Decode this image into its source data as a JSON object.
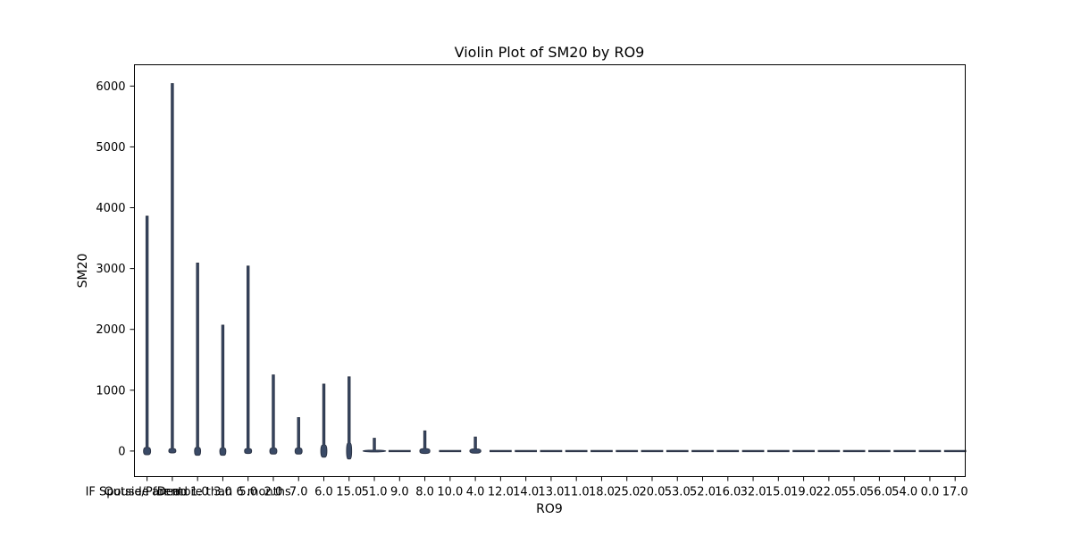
{
  "chart_data": {
    "type": "violin",
    "title": "Violin Plot of SM20 by RO9",
    "xlabel": "RO9",
    "ylabel": "SM20",
    "ylim": [
      -420,
      6350
    ],
    "yticks": [
      0,
      1000,
      2000,
      3000,
      4000,
      5000,
      6000
    ],
    "grid": false,
    "categories": [
      "IF Spouse/Parent: 1.0",
      "Dead",
      "Outside for more than 6 months",
      "3.0",
      "5.0",
      "2.0",
      "7.0",
      "6.0",
      "15.0",
      "51.0",
      "9.0",
      "8.0",
      "10.0",
      "4.0",
      "12.0",
      "14.0",
      "13.0",
      "11.0",
      "18.0",
      "25.0",
      "20.0",
      "53.0",
      "52.0",
      "16.0",
      "32.0",
      "15.0",
      "19.0",
      "22.0",
      "55.0",
      "56.0",
      "54.0",
      "0.0",
      "17.0"
    ],
    "violins": [
      {
        "min": -60,
        "max": 3860,
        "body_low": -60,
        "body_high": 60,
        "half_width": 0.14
      },
      {
        "min": -30,
        "max": 6040,
        "body_low": -30,
        "body_high": 40,
        "half_width": 0.14
      },
      {
        "min": -70,
        "max": 3090,
        "body_low": -70,
        "body_high": 60,
        "half_width": 0.12
      },
      {
        "min": -70,
        "max": 2070,
        "body_low": -70,
        "body_high": 50,
        "half_width": 0.12
      },
      {
        "min": -40,
        "max": 3040,
        "body_low": -40,
        "body_high": 40,
        "half_width": 0.14
      },
      {
        "min": -50,
        "max": 1250,
        "body_low": -50,
        "body_high": 50,
        "half_width": 0.14
      },
      {
        "min": -50,
        "max": 550,
        "body_low": -50,
        "body_high": 50,
        "half_width": 0.14
      },
      {
        "min": -100,
        "max": 1100,
        "body_low": -100,
        "body_high": 100,
        "half_width": 0.12
      },
      {
        "min": -130,
        "max": 1220,
        "body_low": -130,
        "body_high": 130,
        "half_width": 0.1
      },
      {
        "min": -15,
        "max": 210,
        "body_low": -15,
        "body_high": 15,
        "half_width": 0.45
      },
      {
        "min": 0,
        "max": 0,
        "body_low": 0,
        "body_high": 0,
        "half_width": 0.42
      },
      {
        "min": -40,
        "max": 330,
        "body_low": -40,
        "body_high": 40,
        "half_width": 0.2
      },
      {
        "min": 0,
        "max": 0,
        "body_low": 0,
        "body_high": 0,
        "half_width": 0.42
      },
      {
        "min": -35,
        "max": 230,
        "body_low": -35,
        "body_high": 35,
        "half_width": 0.22
      },
      {
        "min": 0,
        "max": 0,
        "body_low": 0,
        "body_high": 0,
        "half_width": 0.42
      },
      {
        "min": 0,
        "max": 0,
        "body_low": 0,
        "body_high": 0,
        "half_width": 0.42
      },
      {
        "min": 0,
        "max": 0,
        "body_low": 0,
        "body_high": 0,
        "half_width": 0.42
      },
      {
        "min": 0,
        "max": 0,
        "body_low": 0,
        "body_high": 0,
        "half_width": 0.42
      },
      {
        "min": 0,
        "max": 0,
        "body_low": 0,
        "body_high": 0,
        "half_width": 0.42
      },
      {
        "min": 0,
        "max": 0,
        "body_low": 0,
        "body_high": 0,
        "half_width": 0.42
      },
      {
        "min": 0,
        "max": 0,
        "body_low": 0,
        "body_high": 0,
        "half_width": 0.42
      },
      {
        "min": 0,
        "max": 0,
        "body_low": 0,
        "body_high": 0,
        "half_width": 0.42
      },
      {
        "min": 0,
        "max": 0,
        "body_low": 0,
        "body_high": 0,
        "half_width": 0.42
      },
      {
        "min": 0,
        "max": 0,
        "body_low": 0,
        "body_high": 0,
        "half_width": 0.42
      },
      {
        "min": 0,
        "max": 0,
        "body_low": 0,
        "body_high": 0,
        "half_width": 0.42
      },
      {
        "min": 0,
        "max": 0,
        "body_low": 0,
        "body_high": 0,
        "half_width": 0.42
      },
      {
        "min": 0,
        "max": 0,
        "body_low": 0,
        "body_high": 0,
        "half_width": 0.42
      },
      {
        "min": 0,
        "max": 0,
        "body_low": 0,
        "body_high": 0,
        "half_width": 0.42
      },
      {
        "min": 0,
        "max": 0,
        "body_low": 0,
        "body_high": 0,
        "half_width": 0.42
      },
      {
        "min": 0,
        "max": 0,
        "body_low": 0,
        "body_high": 0,
        "half_width": 0.42
      },
      {
        "min": 0,
        "max": 0,
        "body_low": 0,
        "body_high": 0,
        "half_width": 0.42
      },
      {
        "min": 0,
        "max": 0,
        "body_low": 0,
        "body_high": 0,
        "half_width": 0.42
      },
      {
        "min": 0,
        "max": 0,
        "body_low": 0,
        "body_high": 0,
        "half_width": 0.42
      }
    ],
    "colors": {
      "violin_fill": "#3a4a66",
      "violin_stroke": "#2c3446",
      "axis": "#000000"
    }
  }
}
